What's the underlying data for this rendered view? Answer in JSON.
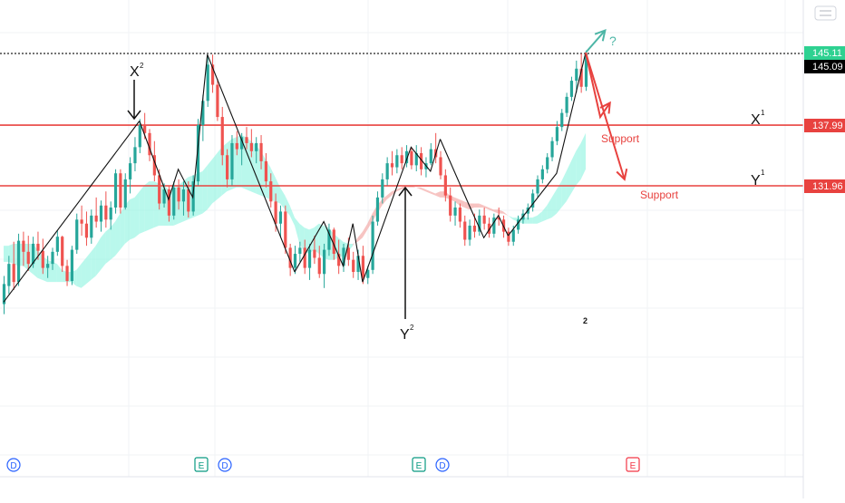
{
  "chart_data": {
    "type": "candlestick",
    "title": "",
    "xlabel": "",
    "ylabel": "",
    "ylim": [
      120.0,
      147.5
    ],
    "price_labels": {
      "last": "145.11",
      "current": "145.09",
      "x1_level": "137.99",
      "y1_level": "131.96"
    },
    "levels": [
      {
        "name": "top",
        "value": 145.11,
        "color": "#222222",
        "style": "dotted"
      },
      {
        "name": "X1",
        "value": 137.99,
        "color": "#e8423f",
        "style": "solid"
      },
      {
        "name": "Y1",
        "value": 131.96,
        "color": "#e8423f",
        "style": "solid"
      }
    ],
    "annotations": {
      "x2": "X",
      "x2_sup": "2",
      "y2": "Y",
      "y2_sup": "2",
      "x1": "X",
      "x1_sup": "1",
      "y1": "Y",
      "y1_sup": "1",
      "support_a": "Support",
      "support_b": "Support",
      "question": "?",
      "stray": "2"
    },
    "event_markers": [
      {
        "label": "D",
        "color": "#2962ff",
        "kind": "dividend"
      },
      {
        "label": "E",
        "color": "#089981",
        "kind": "earnings"
      },
      {
        "label": "D",
        "color": "#2962ff",
        "kind": "dividend"
      },
      {
        "label": "E",
        "color": "#089981",
        "kind": "earnings"
      },
      {
        "label": "D",
        "color": "#2962ff",
        "kind": "dividend"
      },
      {
        "label": "E",
        "color": "#f23645",
        "kind": "earnings-upcoming"
      }
    ],
    "colors": {
      "up": "#26a69a",
      "down": "#ef5350",
      "cloud_bull": "#7ff2dc",
      "cloud_bear": "#f08a86",
      "level_red": "#e8423f",
      "projection_teal": "#4db6a6",
      "projection_red": "#e8423f"
    },
    "candles": [
      [
        120.2,
        123.0,
        119.2,
        122.2
      ],
      [
        122.0,
        125.0,
        121.2,
        124.2
      ],
      [
        124.2,
        126.4,
        121.6,
        122.4
      ],
      [
        122.4,
        127.2,
        122.0,
        126.5
      ],
      [
        126.5,
        127.4,
        124.0,
        125.4
      ],
      [
        125.4,
        127.0,
        123.5,
        124.2
      ],
      [
        124.2,
        126.9,
        123.8,
        126.2
      ],
      [
        126.2,
        127.4,
        124.6,
        125.5
      ],
      [
        125.5,
        126.7,
        123.2,
        123.8
      ],
      [
        123.8,
        125.0,
        122.8,
        124.2
      ],
      [
        124.2,
        125.8,
        123.6,
        125.4
      ],
      [
        125.4,
        127.5,
        125.0,
        126.9
      ],
      [
        126.9,
        127.0,
        123.4,
        124.0
      ],
      [
        124.0,
        124.6,
        122.0,
        122.5
      ],
      [
        122.5,
        126.0,
        122.1,
        125.6
      ],
      [
        125.6,
        129.2,
        125.2,
        128.6
      ],
      [
        128.6,
        130.0,
        127.0,
        128.2
      ],
      [
        128.2,
        129.4,
        126.0,
        126.8
      ],
      [
        126.8,
        129.6,
        126.2,
        129.0
      ],
      [
        129.0,
        130.8,
        127.8,
        128.4
      ],
      [
        128.4,
        130.5,
        127.4,
        130.0
      ],
      [
        130.0,
        131.4,
        127.8,
        128.6
      ],
      [
        128.6,
        130.4,
        127.6,
        129.8
      ],
      [
        129.8,
        133.6,
        129.2,
        133.2
      ],
      [
        133.2,
        133.6,
        129.2,
        129.8
      ],
      [
        129.8,
        133.2,
        129.6,
        132.6
      ],
      [
        132.6,
        134.8,
        131.2,
        134.2
      ],
      [
        134.2,
        136.8,
        133.4,
        135.8
      ],
      [
        135.8,
        138.6,
        135.2,
        138.0
      ],
      [
        138.0,
        139.2,
        136.6,
        137.2
      ],
      [
        137.2,
        137.6,
        134.4,
        135.0
      ],
      [
        135.0,
        136.4,
        132.4,
        133.0
      ],
      [
        133.0,
        133.6,
        129.6,
        130.2
      ],
      [
        130.2,
        132.2,
        129.8,
        131.6
      ],
      [
        131.6,
        132.0,
        128.4,
        129.0
      ],
      [
        129.0,
        132.4,
        128.6,
        131.8
      ],
      [
        131.8,
        132.6,
        129.6,
        130.4
      ],
      [
        130.4,
        132.4,
        129.0,
        131.6
      ],
      [
        131.6,
        132.4,
        128.8,
        129.4
      ],
      [
        129.4,
        133.0,
        129.0,
        132.4
      ],
      [
        132.4,
        138.6,
        132.0,
        138.0
      ],
      [
        138.0,
        141.0,
        136.4,
        140.4
      ],
      [
        140.4,
        144.8,
        139.8,
        144.0
      ],
      [
        144.0,
        145.0,
        141.2,
        142.0
      ],
      [
        142.0,
        142.6,
        138.4,
        138.8
      ],
      [
        138.8,
        139.8,
        134.0,
        135.0
      ],
      [
        135.0,
        135.6,
        131.8,
        132.6
      ],
      [
        132.6,
        137.0,
        132.0,
        136.2
      ],
      [
        136.2,
        137.4,
        135.0,
        135.6
      ],
      [
        135.6,
        137.2,
        134.0,
        136.8
      ],
      [
        136.8,
        137.8,
        135.6,
        136.2
      ],
      [
        136.2,
        137.6,
        134.8,
        135.4
      ],
      [
        135.4,
        136.8,
        134.2,
        136.2
      ],
      [
        136.2,
        137.0,
        133.6,
        134.4
      ],
      [
        134.4,
        135.2,
        131.8,
        132.4
      ],
      [
        132.4,
        133.2,
        129.8,
        130.4
      ],
      [
        130.4,
        131.2,
        127.4,
        128.2
      ],
      [
        128.2,
        130.0,
        126.8,
        129.4
      ],
      [
        129.4,
        130.0,
        125.2,
        125.8
      ],
      [
        125.8,
        126.2,
        123.0,
        123.8
      ],
      [
        123.8,
        126.0,
        123.2,
        125.2
      ],
      [
        125.2,
        126.4,
        124.4,
        125.8
      ],
      [
        125.8,
        126.6,
        123.2,
        123.8
      ],
      [
        123.8,
        126.2,
        122.6,
        125.6
      ],
      [
        125.6,
        127.0,
        124.2,
        124.8
      ],
      [
        124.8,
        126.0,
        122.8,
        123.2
      ],
      [
        123.2,
        126.2,
        121.8,
        125.6
      ],
      [
        125.6,
        128.2,
        125.0,
        127.6
      ],
      [
        127.6,
        127.8,
        124.6,
        125.2
      ],
      [
        125.2,
        126.6,
        123.2,
        124.0
      ],
      [
        124.0,
        126.2,
        123.4,
        125.8
      ],
      [
        125.8,
        126.8,
        124.0,
        124.6
      ],
      [
        124.6,
        125.4,
        122.8,
        123.4
      ],
      [
        123.4,
        125.6,
        122.6,
        125.0
      ],
      [
        125.0,
        126.0,
        122.2,
        122.8
      ],
      [
        122.8,
        124.0,
        122.2,
        123.6
      ],
      [
        123.6,
        129.0,
        123.2,
        128.4
      ],
      [
        128.4,
        131.4,
        128.0,
        130.8
      ],
      [
        130.8,
        133.2,
        130.2,
        132.6
      ],
      [
        132.6,
        134.8,
        132.0,
        134.2
      ],
      [
        134.2,
        135.4,
        133.0,
        133.8
      ],
      [
        133.8,
        135.6,
        133.2,
        135.0
      ],
      [
        135.0,
        135.8,
        133.6,
        134.2
      ],
      [
        134.2,
        136.0,
        133.8,
        135.4
      ],
      [
        135.4,
        135.8,
        133.6,
        134.0
      ],
      [
        134.0,
        136.0,
        133.4,
        135.2
      ],
      [
        135.2,
        135.8,
        133.0,
        133.6
      ],
      [
        133.6,
        134.8,
        132.8,
        134.2
      ],
      [
        134.2,
        136.2,
        134.0,
        135.6
      ],
      [
        135.6,
        137.2,
        134.2,
        134.8
      ],
      [
        134.8,
        135.4,
        132.6,
        133.0
      ],
      [
        133.0,
        133.6,
        130.4,
        131.0
      ],
      [
        131.0,
        131.8,
        128.4,
        129.0
      ],
      [
        129.0,
        130.4,
        128.0,
        129.8
      ],
      [
        129.8,
        130.2,
        127.8,
        128.4
      ],
      [
        128.4,
        129.0,
        126.0,
        126.6
      ],
      [
        126.6,
        128.6,
        126.0,
        128.0
      ],
      [
        128.0,
        129.2,
        126.8,
        127.4
      ],
      [
        127.4,
        129.6,
        127.0,
        129.0
      ],
      [
        129.0,
        129.8,
        127.6,
        128.2
      ],
      [
        128.2,
        128.8,
        126.8,
        127.2
      ],
      [
        127.2,
        129.2,
        126.8,
        128.8
      ],
      [
        128.8,
        129.8,
        128.0,
        128.6
      ],
      [
        128.6,
        129.0,
        126.8,
        127.4
      ],
      [
        127.4,
        127.8,
        126.0,
        126.4
      ],
      [
        126.4,
        128.0,
        126.0,
        127.6
      ],
      [
        127.6,
        129.0,
        127.2,
        128.6
      ],
      [
        128.6,
        129.6,
        128.2,
        129.2
      ],
      [
        129.2,
        130.2,
        128.6,
        129.8
      ],
      [
        129.8,
        131.6,
        129.4,
        131.2
      ],
      [
        131.2,
        133.0,
        130.8,
        132.6
      ],
      [
        132.6,
        134.0,
        132.2,
        133.6
      ],
      [
        133.6,
        135.2,
        133.2,
        134.8
      ],
      [
        134.8,
        136.8,
        134.4,
        136.4
      ],
      [
        136.4,
        138.4,
        136.0,
        137.8
      ],
      [
        137.8,
        139.6,
        137.4,
        139.2
      ],
      [
        139.2,
        141.2,
        138.8,
        140.8
      ],
      [
        140.8,
        142.8,
        140.4,
        142.4
      ],
      [
        142.4,
        144.4,
        141.2,
        143.6
      ],
      [
        143.6,
        145.1,
        141.2,
        141.8
      ],
      [
        141.8,
        145.4,
        141.4,
        145.09
      ]
    ],
    "cloud": [
      [
        126.0,
        124.4
      ],
      [
        126.0,
        124.4
      ],
      [
        126.2,
        124.2
      ],
      [
        126.2,
        124.0
      ],
      [
        126.2,
        124.0
      ],
      [
        126.2,
        123.6
      ],
      [
        126.2,
        123.2
      ],
      [
        125.6,
        122.8
      ],
      [
        125.0,
        122.6
      ],
      [
        124.6,
        122.4
      ],
      [
        124.4,
        122.4
      ],
      [
        124.2,
        122.4
      ],
      [
        123.6,
        122.4
      ],
      [
        123.4,
        122.4
      ],
      [
        123.4,
        122.4
      ],
      [
        123.6,
        122.0
      ],
      [
        124.2,
        121.8
      ],
      [
        124.8,
        122.2
      ],
      [
        125.4,
        122.6
      ],
      [
        126.0,
        123.0
      ],
      [
        126.8,
        123.6
      ],
      [
        127.4,
        124.2
      ],
      [
        127.8,
        124.6
      ],
      [
        128.4,
        125.0
      ],
      [
        129.2,
        125.6
      ],
      [
        130.0,
        126.2
      ],
      [
        130.6,
        126.6
      ],
      [
        130.8,
        126.8
      ],
      [
        131.4,
        127.2
      ],
      [
        132.0,
        127.4
      ],
      [
        132.4,
        127.6
      ],
      [
        132.4,
        127.8
      ],
      [
        132.2,
        128.0
      ],
      [
        132.0,
        128.0
      ],
      [
        131.6,
        128.0
      ],
      [
        131.6,
        128.0
      ],
      [
        132.0,
        128.2
      ],
      [
        132.4,
        128.4
      ],
      [
        132.8,
        128.6
      ],
      [
        133.0,
        128.8
      ],
      [
        133.2,
        129.0
      ],
      [
        133.4,
        129.2
      ],
      [
        134.0,
        129.6
      ],
      [
        134.6,
        130.2
      ],
      [
        135.2,
        130.6
      ],
      [
        135.8,
        131.0
      ],
      [
        136.2,
        131.4
      ],
      [
        136.6,
        131.6
      ],
      [
        136.8,
        131.8
      ],
      [
        137.0,
        131.8
      ],
      [
        136.8,
        131.6
      ],
      [
        136.4,
        131.4
      ],
      [
        136.0,
        131.2
      ],
      [
        135.4,
        131.0
      ],
      [
        134.6,
        130.8
      ],
      [
        133.8,
        130.6
      ],
      [
        132.8,
        130.4
      ],
      [
        131.8,
        130.2
      ],
      [
        131.0,
        129.6
      ],
      [
        130.0,
        129.0
      ],
      [
        128.8,
        128.0
      ],
      [
        128.2,
        126.2
      ],
      [
        127.8,
        125.4
      ],
      [
        127.6,
        125.2
      ],
      [
        127.8,
        125.6
      ],
      [
        128.2,
        125.2
      ],
      [
        128.0,
        124.8
      ],
      [
        127.8,
        124.6
      ],
      [
        127.2,
        124.6
      ],
      [
        126.8,
        124.8
      ],
      [
        126.4,
        125.0
      ],
      [
        126.2,
        125.4
      ],
      [
        126.2,
        126.0
      ],
      [
        126.4,
        126.8
      ],
      [
        126.8,
        127.4
      ],
      [
        127.6,
        128.2
      ],
      [
        128.4,
        129.2
      ],
      [
        129.2,
        130.0
      ],
      [
        130.0,
        130.6
      ],
      [
        130.6,
        131.0
      ],
      [
        131.0,
        131.4
      ],
      [
        131.4,
        131.6
      ],
      [
        131.6,
        131.8
      ],
      [
        131.8,
        132.0
      ],
      [
        131.8,
        132.0
      ],
      [
        131.8,
        131.8
      ],
      [
        131.6,
        131.8
      ],
      [
        131.4,
        131.6
      ],
      [
        131.2,
        131.4
      ],
      [
        131.0,
        131.2
      ],
      [
        130.8,
        131.4
      ],
      [
        130.8,
        131.4
      ],
      [
        130.6,
        131.0
      ],
      [
        130.4,
        130.8
      ],
      [
        130.0,
        130.6
      ],
      [
        129.8,
        130.4
      ],
      [
        129.6,
        130.2
      ],
      [
        129.8,
        130.2
      ],
      [
        129.8,
        130.2
      ],
      [
        129.8,
        130.0
      ],
      [
        129.6,
        129.8
      ],
      [
        129.4,
        129.6
      ],
      [
        129.2,
        129.6
      ],
      [
        129.2,
        129.4
      ],
      [
        129.0,
        129.0
      ],
      [
        128.8,
        128.6
      ],
      [
        128.8,
        128.4
      ],
      [
        128.8,
        128.2
      ],
      [
        128.8,
        128.2
      ],
      [
        128.8,
        128.2
      ],
      [
        129.0,
        128.2
      ],
      [
        129.4,
        128.4
      ],
      [
        130.0,
        128.6
      ],
      [
        130.8,
        128.8
      ],
      [
        131.6,
        129.2
      ],
      [
        132.4,
        129.8
      ],
      [
        133.4,
        130.4
      ],
      [
        134.4,
        131.2
      ],
      [
        135.4,
        132.0
      ],
      [
        136.2,
        132.6
      ],
      [
        137.2,
        133.6
      ]
    ],
    "swings": [
      {
        "leg": "up",
        "points": [
          [
            0,
            120.4
          ],
          [
            28,
            138.4
          ]
        ]
      },
      {
        "leg": "down",
        "points": [
          [
            28,
            138.4
          ],
          [
            34,
            130.6
          ],
          [
            36,
            133.6
          ],
          [
            39,
            130.8
          ],
          [
            42,
            145.0
          ]
        ]
      },
      {
        "leg": "down",
        "points": [
          [
            42,
            145.0
          ],
          [
            60,
            123.4
          ]
        ]
      },
      {
        "leg": "up",
        "points": [
          [
            60,
            123.4
          ],
          [
            66,
            128.4
          ],
          [
            70,
            124.0
          ],
          [
            72,
            128.2
          ],
          [
            74,
            122.4
          ]
        ]
      },
      {
        "leg": "up",
        "points": [
          [
            74,
            122.4
          ],
          [
            84,
            135.8
          ],
          [
            88,
            133.4
          ],
          [
            90,
            136.6
          ]
        ]
      },
      {
        "leg": "down",
        "points": [
          [
            90,
            136.6
          ],
          [
            96,
            130.0
          ],
          [
            99,
            126.8
          ],
          [
            102,
            129.0
          ],
          [
            104,
            127.0
          ]
        ]
      },
      {
        "leg": "up",
        "points": [
          [
            104,
            127.0
          ],
          [
            114,
            133.2
          ],
          [
            120,
            145.2
          ]
        ]
      }
    ],
    "projection": {
      "teal_arrow": [
        [
          120,
          145.2
        ],
        [
          124,
          147.4
        ]
      ],
      "red_first": [
        [
          120,
          145.2
        ],
        [
          123,
          138.8
        ],
        [
          125,
          140.2
        ]
      ],
      "red_second": [
        [
          120,
          145.2
        ],
        [
          128,
          132.6
        ]
      ]
    }
  }
}
